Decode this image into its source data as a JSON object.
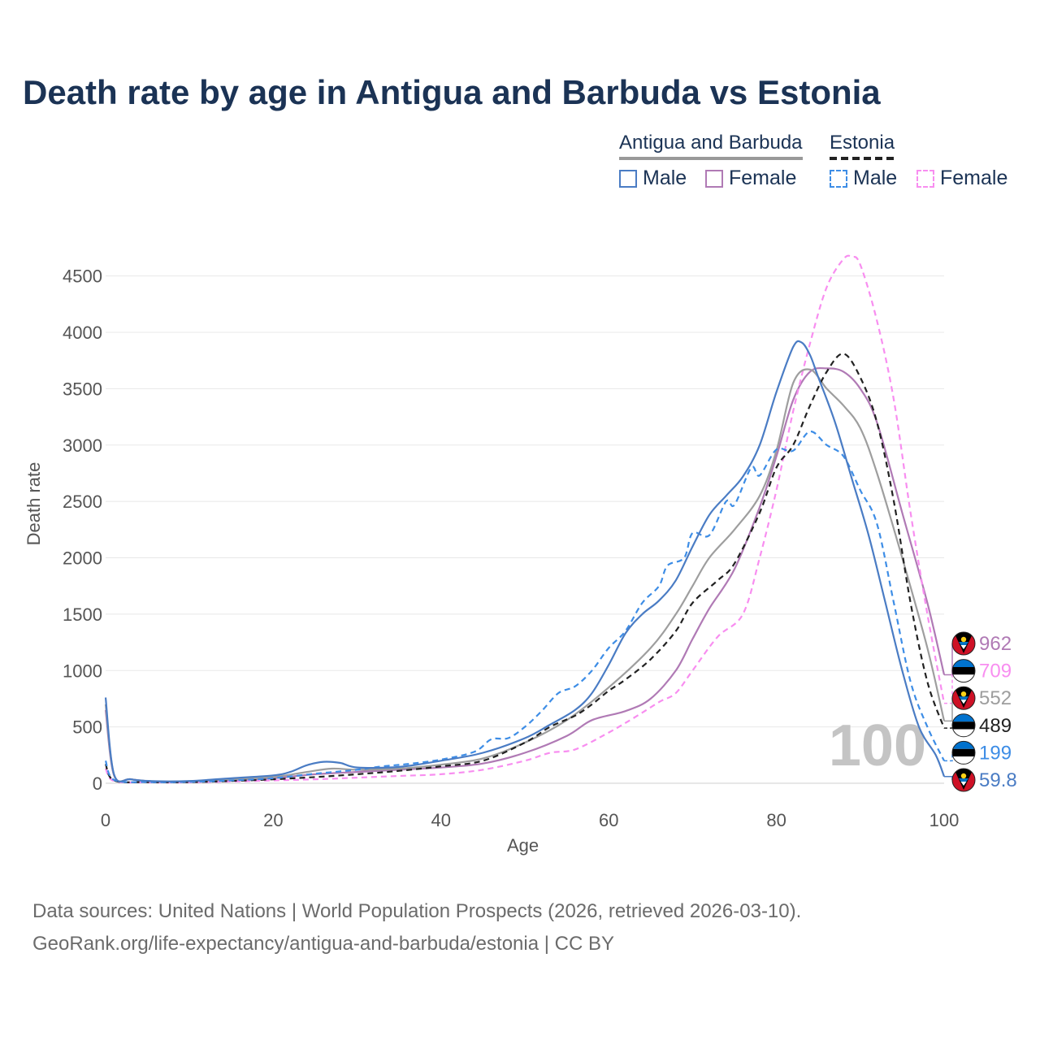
{
  "title": "Death rate by age in Antigua and Barbuda vs Estonia",
  "legend": {
    "groups": [
      {
        "name": "Antigua and Barbuda",
        "underline": "solid"
      },
      {
        "name": "Estonia",
        "underline": "dashed"
      }
    ],
    "items": [
      {
        "label": "Male",
        "color": "#4a7cc4",
        "style": "solid"
      },
      {
        "label": "Female",
        "color": "#b07ab5",
        "style": "solid"
      },
      {
        "label": "Male",
        "color": "#3d8de6",
        "style": "dashed"
      },
      {
        "label": "Female",
        "color": "#f88ef0",
        "style": "dashed"
      }
    ]
  },
  "age_overlay": "100",
  "flags": {
    "antigua": "antigua-and-barbuda-flag-icon",
    "estonia": "estonia-flag-icon"
  },
  "sources": {
    "line1": "Data sources: United Nations | World Population Prospects (2026, retrieved 2026-03-10).",
    "line2": "GeoRank.org/life-expectancy/antigua-and-barbuda/estonia | CC BY"
  },
  "chart_data": {
    "type": "line",
    "xlabel": "Age",
    "ylabel": "Death rate",
    "xlim": [
      0,
      100
    ],
    "ylim": [
      0,
      4800
    ],
    "xticks": [
      0,
      20,
      40,
      60,
      80,
      100
    ],
    "yticks": [
      0,
      500,
      1000,
      1500,
      2000,
      2500,
      3000,
      3500,
      4000,
      4500
    ],
    "grid": true,
    "series": [
      {
        "name": "Antigua and Barbuda Female",
        "color": "#b07ab5",
        "dash": false,
        "end_label": "962",
        "flag": "antigua",
        "points": [
          [
            0,
            650
          ],
          [
            1,
            70
          ],
          [
            3,
            35
          ],
          [
            6,
            15
          ],
          [
            10,
            15
          ],
          [
            15,
            25
          ],
          [
            20,
            45
          ],
          [
            25,
            80
          ],
          [
            30,
            100
          ],
          [
            35,
            120
          ],
          [
            40,
            140
          ],
          [
            45,
            175
          ],
          [
            50,
            270
          ],
          [
            55,
            420
          ],
          [
            58,
            560
          ],
          [
            62,
            640
          ],
          [
            65,
            750
          ],
          [
            68,
            1000
          ],
          [
            70,
            1280
          ],
          [
            72,
            1550
          ],
          [
            75,
            1900
          ],
          [
            78,
            2450
          ],
          [
            80,
            2900
          ],
          [
            82,
            3400
          ],
          [
            84,
            3650
          ],
          [
            86,
            3680
          ],
          [
            88,
            3650
          ],
          [
            90,
            3500
          ],
          [
            92,
            3200
          ],
          [
            95,
            2400
          ],
          [
            98,
            1600
          ],
          [
            100,
            962
          ]
        ]
      },
      {
        "name": "Estonia Female",
        "color": "#f88ef0",
        "dash": true,
        "end_label": "709",
        "flag": "estonia",
        "points": [
          [
            0,
            130
          ],
          [
            1,
            20
          ],
          [
            5,
            8
          ],
          [
            10,
            8
          ],
          [
            15,
            15
          ],
          [
            20,
            25
          ],
          [
            25,
            35
          ],
          [
            30,
            50
          ],
          [
            35,
            65
          ],
          [
            40,
            80
          ],
          [
            45,
            120
          ],
          [
            50,
            200
          ],
          [
            53,
            270
          ],
          [
            56,
            300
          ],
          [
            60,
            450
          ],
          [
            63,
            580
          ],
          [
            66,
            720
          ],
          [
            68,
            800
          ],
          [
            70,
            1000
          ],
          [
            73,
            1300
          ],
          [
            76,
            1500
          ],
          [
            78,
            2000
          ],
          [
            80,
            2600
          ],
          [
            82,
            3300
          ],
          [
            84,
            3900
          ],
          [
            86,
            4400
          ],
          [
            88,
            4650
          ],
          [
            89,
            4670
          ],
          [
            90,
            4600
          ],
          [
            92,
            4100
          ],
          [
            94,
            3400
          ],
          [
            96,
            2400
          ],
          [
            98,
            1500
          ],
          [
            100,
            709
          ]
        ]
      },
      {
        "name": "Antigua and Barbuda (total)",
        "color": "#9e9e9e",
        "dash": false,
        "end_label": "552",
        "flag": "antigua",
        "points": [
          [
            0,
            700
          ],
          [
            1,
            75
          ],
          [
            3,
            35
          ],
          [
            6,
            15
          ],
          [
            10,
            18
          ],
          [
            15,
            35
          ],
          [
            20,
            55
          ],
          [
            24,
            100
          ],
          [
            27,
            130
          ],
          [
            30,
            120
          ],
          [
            35,
            130
          ],
          [
            40,
            165
          ],
          [
            45,
            220
          ],
          [
            50,
            360
          ],
          [
            55,
            560
          ],
          [
            60,
            850
          ],
          [
            65,
            1200
          ],
          [
            68,
            1500
          ],
          [
            70,
            1750
          ],
          [
            72,
            2000
          ],
          [
            75,
            2250
          ],
          [
            78,
            2550
          ],
          [
            80,
            2950
          ],
          [
            82,
            3550
          ],
          [
            84,
            3670
          ],
          [
            86,
            3500
          ],
          [
            88,
            3350
          ],
          [
            90,
            3150
          ],
          [
            92,
            2750
          ],
          [
            95,
            2000
          ],
          [
            98,
            1200
          ],
          [
            100,
            552
          ]
        ]
      },
      {
        "name": "Estonia (total)",
        "color": "#222222",
        "dash": true,
        "end_label": "489",
        "flag": "estonia",
        "points": [
          [
            0,
            170
          ],
          [
            1,
            25
          ],
          [
            5,
            10
          ],
          [
            10,
            10
          ],
          [
            15,
            20
          ],
          [
            20,
            35
          ],
          [
            25,
            55
          ],
          [
            30,
            80
          ],
          [
            35,
            110
          ],
          [
            40,
            150
          ],
          [
            45,
            200
          ],
          [
            50,
            360
          ],
          [
            53,
            500
          ],
          [
            56,
            600
          ],
          [
            58,
            700
          ],
          [
            60,
            820
          ],
          [
            62,
            920
          ],
          [
            65,
            1100
          ],
          [
            68,
            1350
          ],
          [
            70,
            1600
          ],
          [
            73,
            1800
          ],
          [
            75,
            1950
          ],
          [
            78,
            2400
          ],
          [
            80,
            2800
          ],
          [
            82,
            3000
          ],
          [
            84,
            3350
          ],
          [
            86,
            3650
          ],
          [
            88,
            3810
          ],
          [
            90,
            3600
          ],
          [
            92,
            3200
          ],
          [
            94,
            2500
          ],
          [
            96,
            1600
          ],
          [
            98,
            900
          ],
          [
            100,
            489
          ]
        ]
      },
      {
        "name": "Estonia Male",
        "color": "#3d8de6",
        "dash": true,
        "end_label": "199",
        "flag": "estonia",
        "points": [
          [
            0,
            200
          ],
          [
            1,
            30
          ],
          [
            5,
            10
          ],
          [
            10,
            12
          ],
          [
            15,
            25
          ],
          [
            20,
            45
          ],
          [
            25,
            85
          ],
          [
            30,
            120
          ],
          [
            33,
            150
          ],
          [
            36,
            170
          ],
          [
            40,
            210
          ],
          [
            44,
            280
          ],
          [
            46,
            390
          ],
          [
            48,
            400
          ],
          [
            50,
            500
          ],
          [
            52,
            640
          ],
          [
            54,
            800
          ],
          [
            56,
            860
          ],
          [
            58,
            1000
          ],
          [
            60,
            1200
          ],
          [
            62,
            1350
          ],
          [
            64,
            1600
          ],
          [
            66,
            1750
          ],
          [
            67,
            1930
          ],
          [
            69,
            2000
          ],
          [
            70,
            2220
          ],
          [
            72,
            2200
          ],
          [
            74,
            2500
          ],
          [
            75,
            2470
          ],
          [
            77,
            2800
          ],
          [
            78,
            2730
          ],
          [
            80,
            2960
          ],
          [
            82,
            2950
          ],
          [
            84,
            3120
          ],
          [
            86,
            3000
          ],
          [
            88,
            2900
          ],
          [
            90,
            2600
          ],
          [
            92,
            2300
          ],
          [
            94,
            1600
          ],
          [
            96,
            900
          ],
          [
            98,
            500
          ],
          [
            100,
            199
          ]
        ]
      },
      {
        "name": "Antigua and Barbuda Male",
        "color": "#4a7cc4",
        "dash": false,
        "end_label": "59.8",
        "flag": "antigua",
        "points": [
          [
            0,
            760
          ],
          [
            1,
            80
          ],
          [
            3,
            35
          ],
          [
            6,
            18
          ],
          [
            10,
            20
          ],
          [
            15,
            45
          ],
          [
            20,
            70
          ],
          [
            22,
            100
          ],
          [
            24,
            160
          ],
          [
            26,
            190
          ],
          [
            28,
            180
          ],
          [
            30,
            140
          ],
          [
            35,
            145
          ],
          [
            40,
            200
          ],
          [
            45,
            270
          ],
          [
            50,
            400
          ],
          [
            53,
            520
          ],
          [
            56,
            650
          ],
          [
            58,
            800
          ],
          [
            60,
            1050
          ],
          [
            62,
            1330
          ],
          [
            64,
            1500
          ],
          [
            66,
            1620
          ],
          [
            68,
            1800
          ],
          [
            70,
            2100
          ],
          [
            72,
            2380
          ],
          [
            74,
            2550
          ],
          [
            76,
            2720
          ],
          [
            78,
            3000
          ],
          [
            80,
            3470
          ],
          [
            82,
            3870
          ],
          [
            83,
            3910
          ],
          [
            84,
            3800
          ],
          [
            85,
            3600
          ],
          [
            87,
            3200
          ],
          [
            89,
            2700
          ],
          [
            91,
            2200
          ],
          [
            93,
            1600
          ],
          [
            95,
            1000
          ],
          [
            97,
            500
          ],
          [
            99,
            250
          ],
          [
            100,
            59.8
          ]
        ]
      }
    ]
  }
}
